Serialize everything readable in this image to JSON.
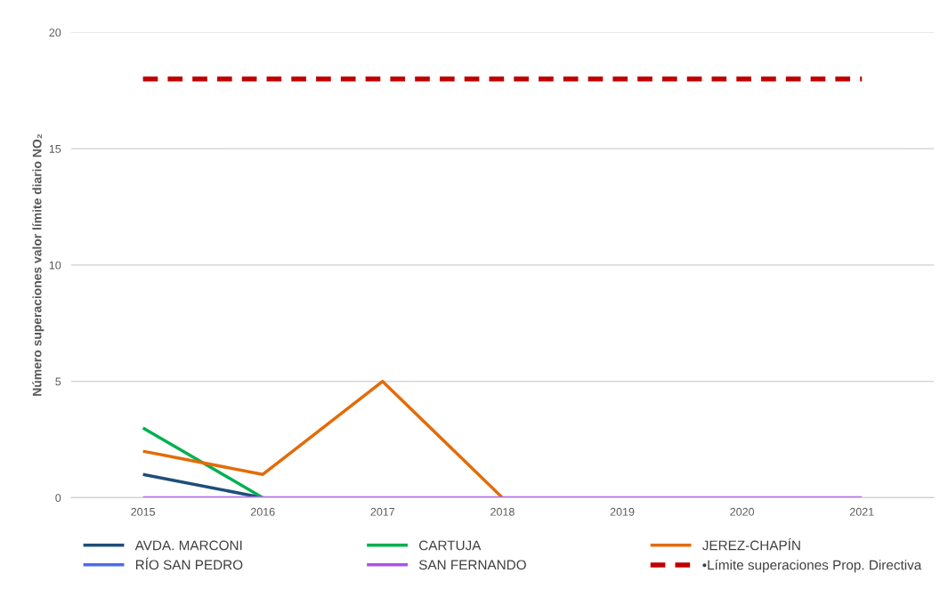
{
  "chart_data": {
    "type": "line",
    "ylabel": "Número superaciones valor límite diario NO₂",
    "categories": [
      "2015",
      "2016",
      "2017",
      "2018",
      "2019",
      "2020",
      "2021"
    ],
    "series": [
      {
        "name": "AVDA. MARCONI",
        "color": "#1f4e79",
        "values": [
          1,
          0,
          null,
          null,
          null,
          null,
          null
        ]
      },
      {
        "name": "CARTUJA",
        "color": "#00b050",
        "values": [
          3,
          0,
          null,
          null,
          null,
          null,
          null
        ]
      },
      {
        "name": "JEREZ-CHAPÍN",
        "color": "#e36c09",
        "values": [
          2,
          1,
          5,
          0,
          null,
          null,
          null
        ]
      },
      {
        "name": "RÍO SAN PEDRO",
        "color": "#4f6bed",
        "values": [
          null,
          null,
          null,
          null,
          null,
          null,
          null
        ]
      },
      {
        "name": "SAN FERNANDO",
        "color": "#a855e8",
        "values": [
          0,
          0,
          0,
          0,
          0,
          0,
          0
        ]
      },
      {
        "name": "•Límite superaciones Prop. Directiva",
        "color": "#c00000",
        "values": [
          18,
          18,
          18,
          18,
          18,
          18,
          18
        ],
        "line_style": "dashed"
      }
    ],
    "ylim": [
      0,
      20
    ],
    "yticks": [
      0,
      5,
      10,
      15,
      20
    ],
    "grid": "y",
    "legend": "bottom"
  }
}
